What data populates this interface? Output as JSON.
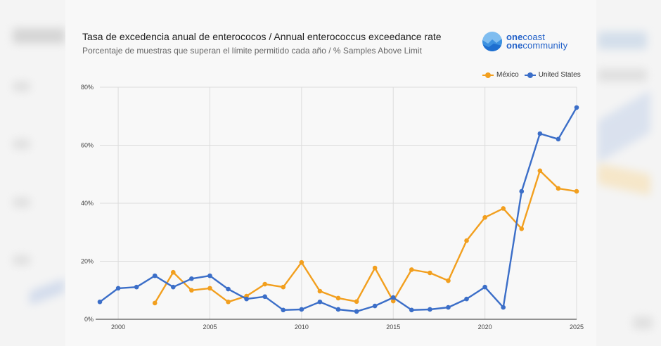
{
  "header": {
    "title": "Tasa de excedencia anual de enterococos / Annual enterococcus exceedance rate",
    "subtitle": "Porcentaje de muestras que superan el límite permitido cada año / % Samples Above Limit"
  },
  "logo": {
    "line1_bold": "one",
    "line1_rest": "coast",
    "line2_bold": "one",
    "line2_rest": "community"
  },
  "colors": {
    "mexico": "#f29f1e",
    "united_states": "#3b6ec8",
    "grid": "#dcdcdc",
    "axis": "#555555"
  },
  "chart_data": {
    "type": "line",
    "title": "Tasa de excedencia anual de enterococos / Annual enterococcus exceedance rate",
    "subtitle": "Porcentaje de muestras que superan el límite permitido cada año / % Samples Above Limit",
    "xlabel": "",
    "ylabel": "",
    "xlim": [
      1999,
      2025
    ],
    "ylim": [
      0,
      80
    ],
    "x_ticks": [
      2000,
      2005,
      2010,
      2015,
      2020,
      2025
    ],
    "y_ticks": [
      0,
      20,
      40,
      60,
      80
    ],
    "y_tick_labels": [
      "0%",
      "20%",
      "40%",
      "60%",
      "80%"
    ],
    "grid": true,
    "legend_position": "top-right",
    "series": [
      {
        "name": "México",
        "color": "#f29f1e",
        "x": [
          2002,
          2003,
          2004,
          2005,
          2006,
          2007,
          2008,
          2009,
          2010,
          2011,
          2012,
          2013,
          2014,
          2015,
          2016,
          2017,
          2018,
          2019,
          2020,
          2021,
          2022,
          2023,
          2024,
          2025
        ],
        "values": [
          5.6,
          16.2,
          10.0,
          10.7,
          6.0,
          8.0,
          12.1,
          11.1,
          19.6,
          9.7,
          7.3,
          6.1,
          17.7,
          6.3,
          17.1,
          16.0,
          13.3,
          27.1,
          35.1,
          38.2,
          31.2,
          51.2,
          45.1,
          44.1
        ]
      },
      {
        "name": "United States",
        "color": "#3b6ec8",
        "x": [
          1999,
          2000,
          2001,
          2002,
          2003,
          2004,
          2005,
          2006,
          2007,
          2008,
          2009,
          2010,
          2011,
          2012,
          2013,
          2014,
          2015,
          2016,
          2017,
          2018,
          2019,
          2020,
          2021,
          2022,
          2023,
          2024,
          2025
        ],
        "values": [
          6.0,
          10.7,
          11.1,
          15.0,
          11.1,
          14.0,
          15.0,
          10.4,
          7.0,
          7.8,
          3.2,
          3.4,
          6.0,
          3.4,
          2.7,
          4.6,
          7.5,
          3.2,
          3.4,
          4.1,
          7.0,
          11.1,
          4.1,
          44.1,
          64.0,
          62.1,
          73.0
        ]
      }
    ]
  }
}
